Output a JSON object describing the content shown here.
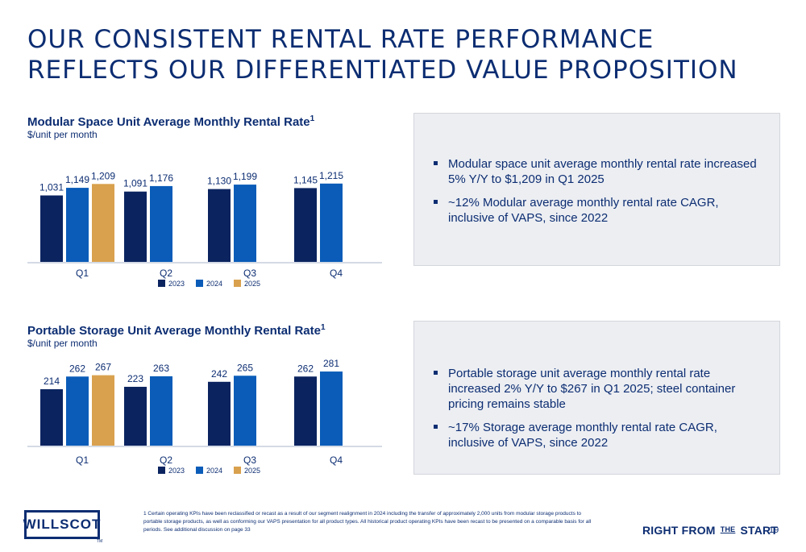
{
  "title": {
    "line1": "OUR CONSISTENT RENTAL RATE PERFORMANCE",
    "line2": "REFLECTS OUR DIFFERENTIATED VALUE PROPOSITION"
  },
  "colors": {
    "2023": "#0b2460",
    "2024": "#0a5cb8",
    "2025": "#d9a14e",
    "navy": "#0c2d72"
  },
  "chart_data": [
    {
      "type": "bar",
      "title": "Modular Space Unit Average Monthly Rental Rate",
      "title_sup": "1",
      "subtitle": "$/unit per month",
      "categories": [
        "Q1",
        "Q2",
        "Q3",
        "Q4"
      ],
      "series": [
        {
          "name": "2023",
          "values": [
            1031,
            1091,
            1130,
            1145
          ],
          "labels": [
            "1,031",
            "1,091",
            "1,130",
            "1,145"
          ]
        },
        {
          "name": "2024",
          "values": [
            1149,
            1176,
            1199,
            1215
          ],
          "labels": [
            "1,149",
            "1,176",
            "1,199",
            "1,215"
          ]
        },
        {
          "name": "2025",
          "values": [
            1209,
            null,
            null,
            null
          ],
          "labels": [
            "1,209",
            "",
            "",
            ""
          ]
        }
      ],
      "ylim": [
        0,
        1500
      ],
      "grid": false,
      "legend_position": "bottom"
    },
    {
      "type": "bar",
      "title": "Portable Storage Unit Average Monthly Rental Rate",
      "title_sup": "1",
      "subtitle": "$/unit per month",
      "categories": [
        "Q1",
        "Q2",
        "Q3",
        "Q4"
      ],
      "series": [
        {
          "name": "2023",
          "values": [
            214,
            223,
            242,
            262
          ],
          "labels": [
            "214",
            "223",
            "242",
            "262"
          ]
        },
        {
          "name": "2024",
          "values": [
            262,
            263,
            265,
            281
          ],
          "labels": [
            "262",
            "263",
            "265",
            "281"
          ]
        },
        {
          "name": "2025",
          "values": [
            267,
            null,
            null,
            null
          ],
          "labels": [
            "267",
            "",
            "",
            ""
          ]
        }
      ],
      "ylim": [
        0,
        330
      ],
      "grid": false,
      "legend_position": "bottom"
    }
  ],
  "panels": [
    {
      "bullets": [
        "Modular space unit average monthly rental rate increased 5% Y/Y to $1,209 in Q1 2025",
        "~12% Modular average monthly rental rate CAGR, inclusive of VAPS, since 2022"
      ]
    },
    {
      "bullets": [
        "Portable storage unit average monthly rental rate increased 2% Y/Y to $267 in Q1 2025; steel container pricing remains stable",
        "~17% Storage average monthly rental rate CAGR, inclusive of VAPS, since 2022"
      ]
    }
  ],
  "footnote": "1 Certain operating KPIs have been reclassified or recast as a result of our segment realignment in 2024 including the transfer of approximately 2,000 units from modular storage products to portable storage products, as well as conforming our VAPS presentation for all product types.  All historical product operating KPIs have been recast to be presented on a comparable basis for all periods.  See additional discussion on page 33",
  "footer": {
    "logo_text": "WILLSCOT",
    "logo_tm": "TM",
    "tagline_before": "RIGHT FROM ",
    "tagline_the": "THE",
    "tagline_after": " START",
    "page_number": "19"
  }
}
